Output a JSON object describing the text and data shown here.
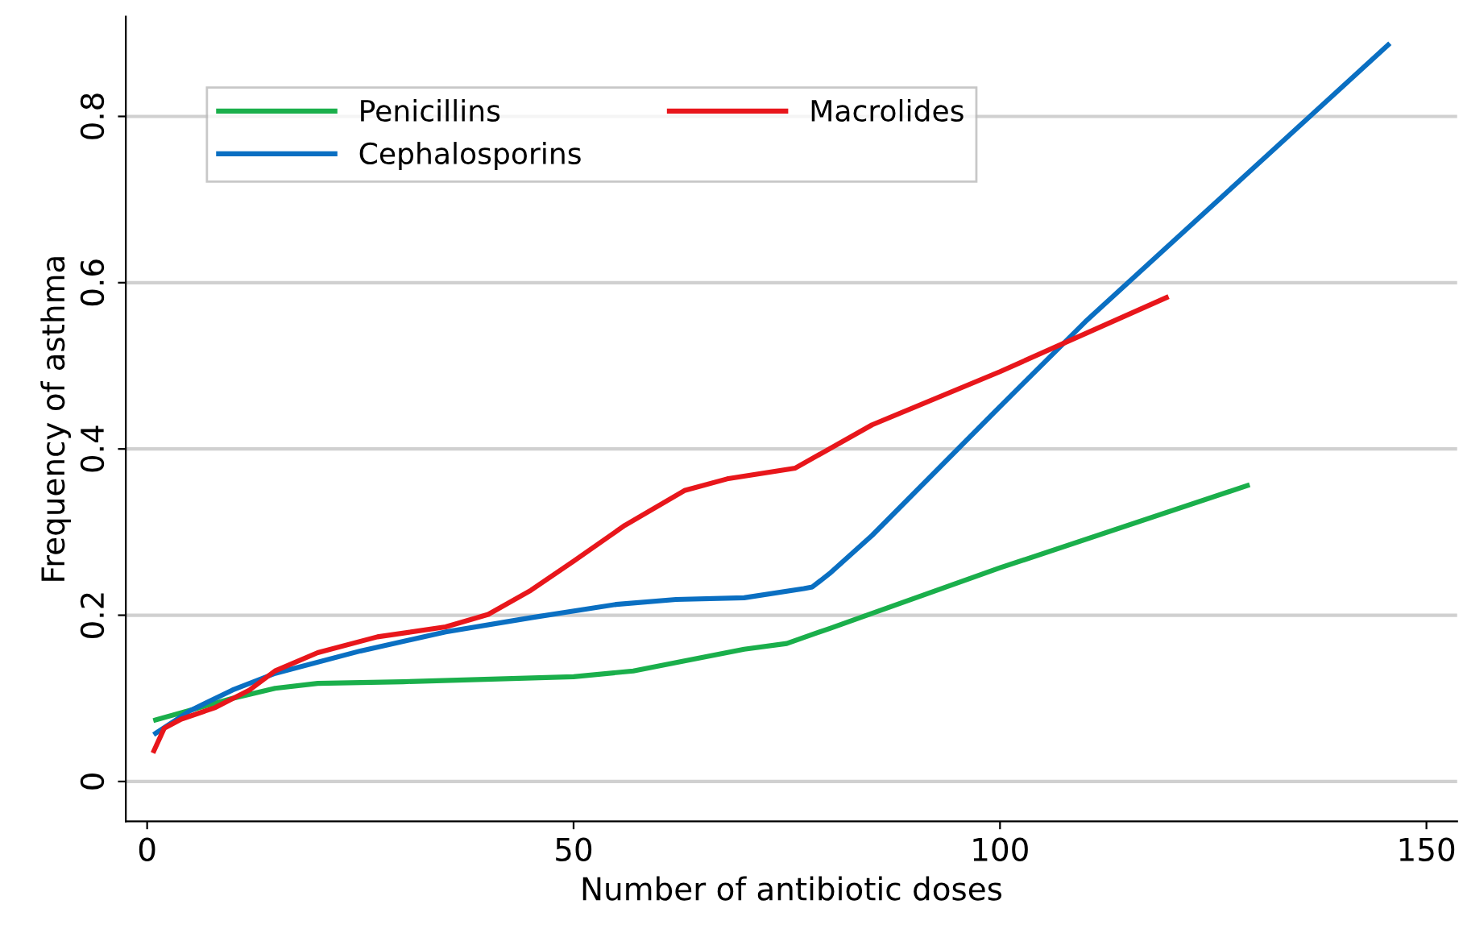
{
  "chart_data": {
    "type": "line",
    "xlabel": "Number of antibiotic doses",
    "ylabel": "Frequency of asthma",
    "xlim": [
      -2.5,
      153.6
    ],
    "ylim": [
      -0.048,
      0.92
    ],
    "xticks": [
      0,
      50,
      100,
      150
    ],
    "yticks": [
      0,
      0.2,
      0.4,
      0.6,
      0.8
    ],
    "grid": "y",
    "legend": "top left",
    "marker": "none",
    "line_style": "solid",
    "series": [
      {
        "name": "Penicillins",
        "color": "#1aaf4b",
        "x": [
          1,
          10,
          15,
          20,
          30,
          50,
          57,
          63,
          70,
          75,
          80,
          100,
          129
        ],
        "values": [
          0.074,
          0.1,
          0.112,
          0.118,
          0.12,
          0.126,
          0.133,
          0.145,
          0.159,
          0.166,
          0.184,
          0.257,
          0.356
        ]
      },
      {
        "name": "Cephalosporins",
        "color": "#0a6fc2",
        "x": [
          1,
          5,
          10,
          15,
          25,
          35,
          45,
          55,
          62,
          70,
          77,
          78,
          80,
          85,
          100,
          110,
          145.5
        ],
        "values": [
          0.058,
          0.085,
          0.11,
          0.13,
          0.157,
          0.18,
          0.197,
          0.213,
          0.219,
          0.221,
          0.232,
          0.234,
          0.25,
          0.296,
          0.451,
          0.553,
          0.886
        ]
      },
      {
        "name": "Macrolides",
        "color": "#e8161b",
        "x": [
          0.8,
          2,
          4,
          8,
          12,
          15,
          20,
          27,
          35,
          40,
          45,
          50,
          56,
          63,
          68,
          76,
          85,
          100,
          119.5
        ],
        "values": [
          0.037,
          0.064,
          0.075,
          0.089,
          0.11,
          0.133,
          0.155,
          0.174,
          0.186,
          0.201,
          0.23,
          0.265,
          0.308,
          0.35,
          0.364,
          0.377,
          0.429,
          0.493,
          0.582
        ]
      }
    ]
  }
}
